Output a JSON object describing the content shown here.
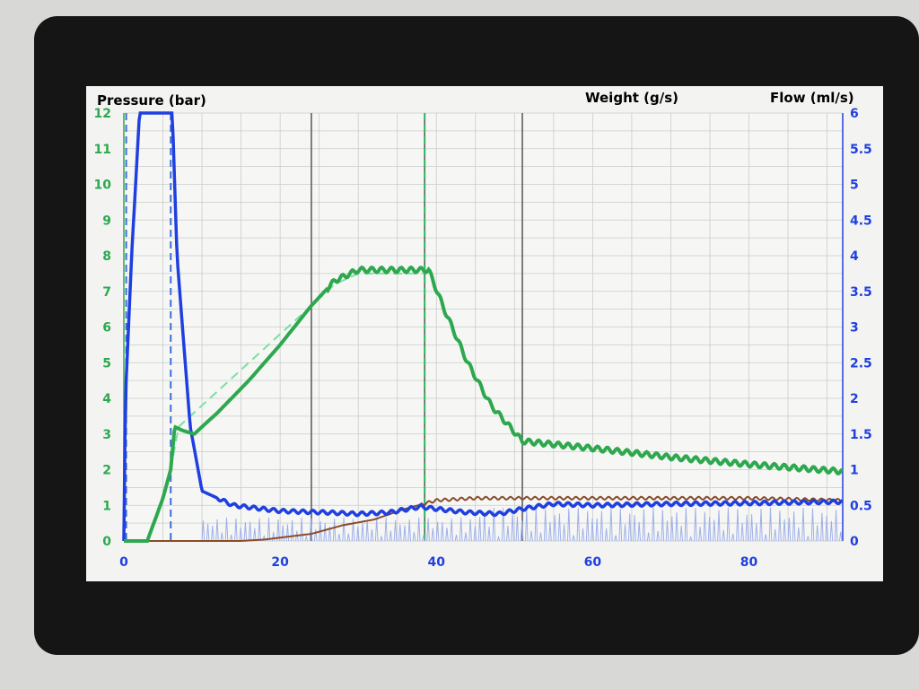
{
  "chart_data": {
    "type": "line",
    "labels": {
      "pressure": "Pressure (bar)",
      "weight": "Weight (g/s)",
      "flow": "Flow (ml/s)"
    },
    "colors": {
      "pressure": "#2ea84e",
      "pressure_target": "#7ae0a0",
      "weight": "#8a4b2a",
      "flow": "#1f3fe0",
      "flow_raw": "#9fb0e8",
      "grid": "#c9cccc",
      "phase": "#555555"
    },
    "x_range": [
      0,
      92
    ],
    "x_ticks": [
      0,
      20,
      40,
      60,
      80
    ],
    "y_left_range": [
      0,
      12
    ],
    "y_left_ticks": [
      0,
      1,
      2,
      3,
      4,
      5,
      6,
      7,
      8,
      9,
      10,
      11,
      12
    ],
    "y_right_range": [
      0,
      6
    ],
    "y_right_ticks": [
      "0",
      "0.5",
      "1",
      "1.5",
      "2",
      "2.5",
      "3",
      "3.5",
      "4",
      "4.5",
      "5",
      "5.5",
      "6"
    ],
    "phase_lines": [
      24,
      38.5,
      51
    ],
    "series": [
      {
        "name": "Pressure (bar)",
        "axis": "left",
        "points": [
          [
            0,
            0
          ],
          [
            3,
            0
          ],
          [
            5,
            1.2
          ],
          [
            6,
            2.0
          ],
          [
            6.5,
            3.2
          ],
          [
            7.5,
            3.1
          ],
          [
            9,
            3.0
          ],
          [
            12,
            3.6
          ],
          [
            16,
            4.5
          ],
          [
            20,
            5.5
          ],
          [
            24,
            6.6
          ],
          [
            27,
            7.3
          ],
          [
            30,
            7.6
          ],
          [
            34,
            7.6
          ],
          [
            38,
            7.6
          ],
          [
            39,
            7.6
          ],
          [
            41,
            6.5
          ],
          [
            44,
            5.0
          ],
          [
            47,
            3.8
          ],
          [
            51,
            2.8
          ],
          [
            60,
            2.6
          ],
          [
            70,
            2.35
          ],
          [
            80,
            2.15
          ],
          [
            92,
            1.95
          ]
        ]
      },
      {
        "name": "Weight (g/s)",
        "axis": "right",
        "points": [
          [
            0,
            0
          ],
          [
            15,
            0
          ],
          [
            18,
            0.02
          ],
          [
            24,
            0.1
          ],
          [
            28,
            0.22
          ],
          [
            32,
            0.3
          ],
          [
            36,
            0.45
          ],
          [
            40,
            0.57
          ],
          [
            45,
            0.6
          ],
          [
            50,
            0.6
          ],
          [
            60,
            0.6
          ],
          [
            70,
            0.6
          ],
          [
            80,
            0.6
          ],
          [
            92,
            0.57
          ]
        ]
      },
      {
        "name": "Flow (ml/s)",
        "axis": "right",
        "points": [
          [
            0,
            0
          ],
          [
            0.2,
            2
          ],
          [
            1,
            4
          ],
          [
            2,
            6
          ],
          [
            6.2,
            6
          ],
          [
            6.8,
            4
          ],
          [
            7.5,
            3
          ],
          [
            8.5,
            1.6
          ],
          [
            10,
            0.7
          ],
          [
            14,
            0.5
          ],
          [
            20,
            0.42
          ],
          [
            26,
            0.4
          ],
          [
            30,
            0.38
          ],
          [
            34,
            0.4
          ],
          [
            38,
            0.48
          ],
          [
            40,
            0.45
          ],
          [
            44,
            0.4
          ],
          [
            48,
            0.38
          ],
          [
            51,
            0.45
          ],
          [
            55,
            0.52
          ],
          [
            60,
            0.5
          ],
          [
            70,
            0.52
          ],
          [
            80,
            0.53
          ],
          [
            92,
            0.55
          ]
        ]
      }
    ]
  }
}
